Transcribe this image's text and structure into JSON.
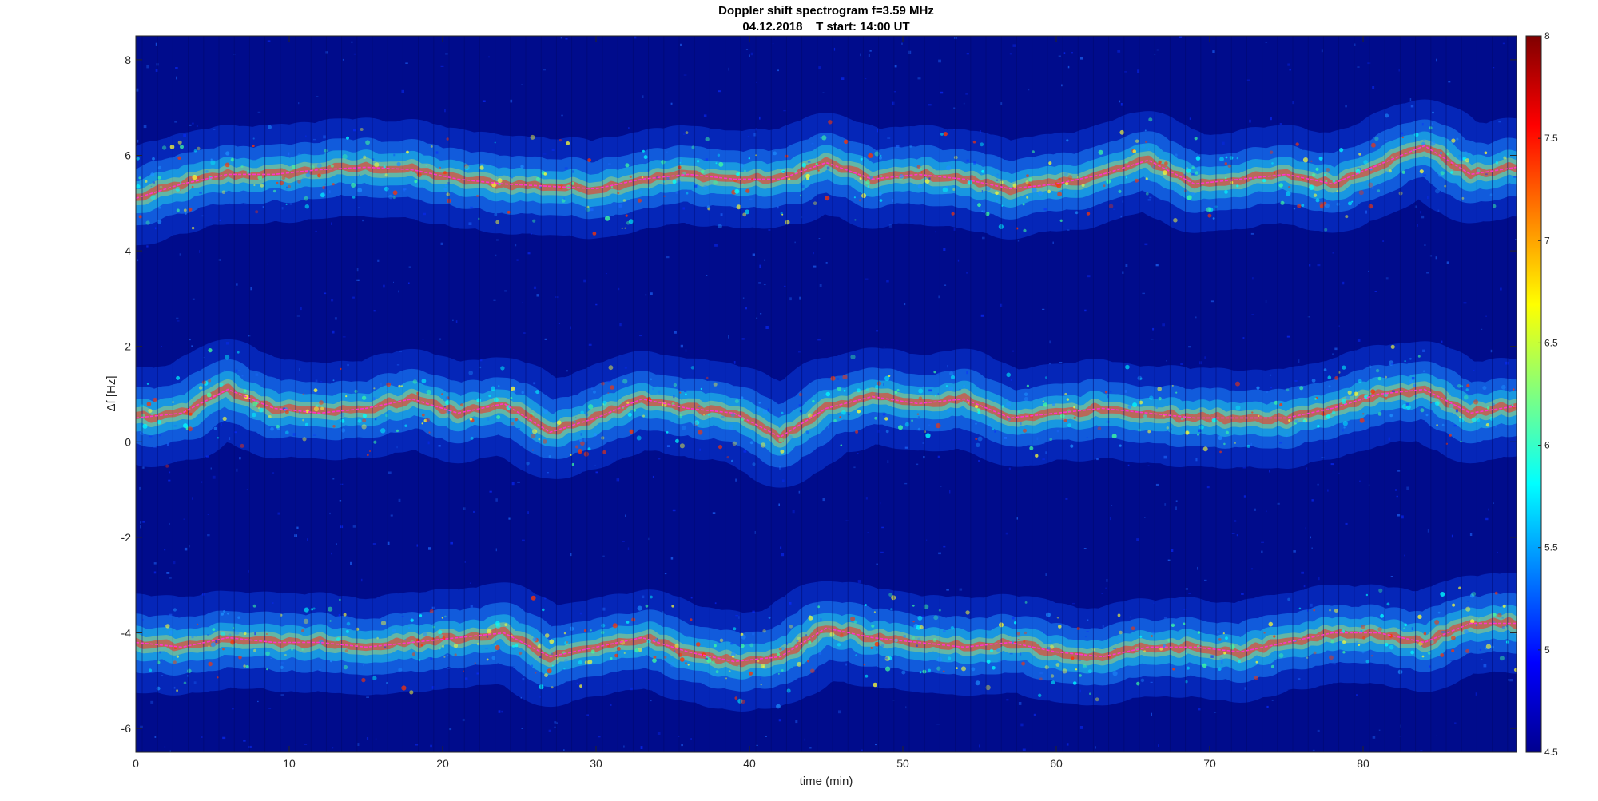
{
  "chart_data": {
    "type": "heatmap",
    "title": "Doppler shift spectrogram f=3.59 MHz",
    "subtitle": "04.12.2018    T start: 14:00 UT",
    "xlabel": "time (min)",
    "ylabel": "Δf [Hz]",
    "xlim": [
      0,
      90
    ],
    "ylim": [
      -6.5,
      8.5
    ],
    "x_ticks": [
      "0",
      "10",
      "20",
      "30",
      "40",
      "50",
      "60",
      "70",
      "80"
    ],
    "y_ticks": [
      "-6",
      "-4",
      "-2",
      "0",
      "2",
      "4",
      "6",
      "8"
    ],
    "colorbar": {
      "range": [
        4.5,
        8
      ],
      "ticks": [
        "4.5",
        "5",
        "5.5",
        "6",
        "6.5",
        "7",
        "7.5",
        "8"
      ],
      "colormap": "jet"
    },
    "series": [
      {
        "color": "#ff33cc",
        "x": [
          0,
          3,
          6,
          9,
          12,
          15,
          18,
          21,
          24,
          27,
          30,
          33,
          36,
          39,
          42,
          45,
          48,
          51,
          54,
          57,
          60,
          63,
          66,
          69,
          72,
          75,
          78,
          81,
          84,
          87,
          90
        ],
        "y": [
          5.1,
          5.4,
          5.6,
          5.6,
          5.7,
          5.75,
          5.7,
          5.5,
          5.4,
          5.35,
          5.3,
          5.5,
          5.6,
          5.5,
          5.5,
          5.85,
          5.5,
          5.6,
          5.5,
          5.3,
          5.4,
          5.6,
          5.9,
          5.4,
          5.5,
          5.6,
          5.4,
          5.8,
          6.2,
          5.6,
          5.75
        ]
      },
      {
        "color": "#ff33cc",
        "x": [
          0,
          3,
          6,
          9,
          12,
          15,
          18,
          21,
          24,
          27,
          30,
          33,
          36,
          39,
          42,
          45,
          48,
          51,
          54,
          57,
          60,
          63,
          66,
          69,
          72,
          75,
          78,
          81,
          84,
          87,
          90
        ],
        "y": [
          0.5,
          0.6,
          1.1,
          0.7,
          0.6,
          0.7,
          0.9,
          0.6,
          0.8,
          0.2,
          0.5,
          0.9,
          0.7,
          0.6,
          0.1,
          0.7,
          0.95,
          0.8,
          0.9,
          0.5,
          0.6,
          0.7,
          0.6,
          0.5,
          0.5,
          0.5,
          0.7,
          1.0,
          1.1,
          0.6,
          0.75
        ]
      },
      {
        "color": "#ff33cc",
        "x": [
          0,
          3,
          6,
          9,
          12,
          15,
          18,
          21,
          24,
          27,
          30,
          33,
          36,
          39,
          42,
          45,
          48,
          51,
          54,
          57,
          60,
          63,
          66,
          69,
          72,
          75,
          78,
          81,
          84,
          87,
          90
        ],
        "y": [
          -4.2,
          -4.3,
          -4.1,
          -4.2,
          -4.2,
          -4.3,
          -4.2,
          -4.1,
          -4.0,
          -4.5,
          -4.3,
          -4.1,
          -4.4,
          -4.6,
          -4.5,
          -3.9,
          -4.1,
          -4.2,
          -4.3,
          -4.2,
          -4.4,
          -4.5,
          -4.3,
          -4.3,
          -4.4,
          -4.2,
          -4.0,
          -4.0,
          -4.2,
          -3.8,
          -3.8
        ]
      }
    ]
  }
}
